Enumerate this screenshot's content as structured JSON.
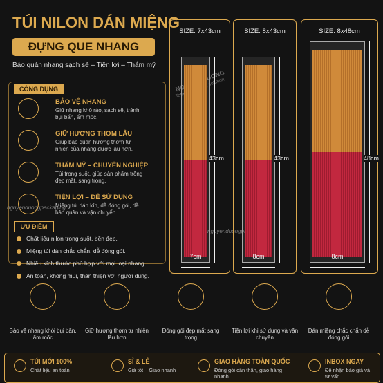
{
  "header": {
    "title": "TÚI NILON DÁN MIỆNG",
    "banner": "ĐỰNG QUE NHANG",
    "subtitle": "Bảo quản nhang sạch sẽ – Tiện lợi – Thẩm mỹ"
  },
  "uses": {
    "heading": "CÔNG DỤNG",
    "items": [
      {
        "title": "BẢO VỆ NHANG",
        "text": "Giữ nhang khô ráo, sạch sẽ, tránh bụi bẩn, ẩm mốc."
      },
      {
        "title": "GIỮ HƯƠNG THƠM LÂU",
        "text": "Giúp bảo quản hương thơm tự nhiên của nhang được lâu hơn."
      },
      {
        "title": "THẨM MỸ – CHUYÊN NGHIỆP",
        "text": "Túi trong suốt, giúp sản phẩm trông đẹp mắt, sang trọng."
      },
      {
        "title": "TIỆN LỢI – DỄ SỬ DỤNG",
        "text": "Miệng túi dán kín, dễ đóng gói, dễ bảo quản và vận chuyển."
      }
    ]
  },
  "advantages": {
    "heading": "ƯU ĐIỂM",
    "items": [
      "Chất liệu nilon trong suốt, bền đẹp.",
      "Miệng túi dán chắc chắn, dễ đóng gói.",
      "Nhiều kích thước phù hợp với mọi loại nhang.",
      "An toàn, không mùi, thân thiện với người dùng."
    ]
  },
  "products": [
    {
      "size": "SIZE: 7x43cm",
      "height": "43cm",
      "width": "7cm"
    },
    {
      "size": "SIZE: 8x43cm",
      "height": "43cm",
      "width": "8cm"
    },
    {
      "size": "SIZE: 8x48cm",
      "height": "48cm",
      "width": "8cm"
    }
  ],
  "watermark": {
    "brand": "NGUYEN DUONG",
    "tagline": "Total packaging solution",
    "site": "nguyenduongpackaging"
  },
  "features": [
    "Bảo vệ nhang khỏi bụi bẩn, ẩm mốc",
    "Giữ hương thơm tự nhiên lâu hơn",
    "Đóng gói đẹp mắt sang trọng",
    "Tiện lợi khi sử dụng và vận chuyển",
    "Dán miệng chắc chắn dễ đóng gói"
  ],
  "footer": [
    {
      "title": "TÚI MỚI 100%",
      "text": "Chất liệu an toàn"
    },
    {
      "title": "SỈ & LẺ",
      "text": "Giá tốt – Giao nhanh"
    },
    {
      "title": "GIAO HÀNG TOÀN QUỐC",
      "text": "Đóng gói cẩn thận, giao hàng nhanh"
    },
    {
      "title": "INBOX NGAY",
      "text": "Để nhận báo giá và tư vấn"
    }
  ]
}
